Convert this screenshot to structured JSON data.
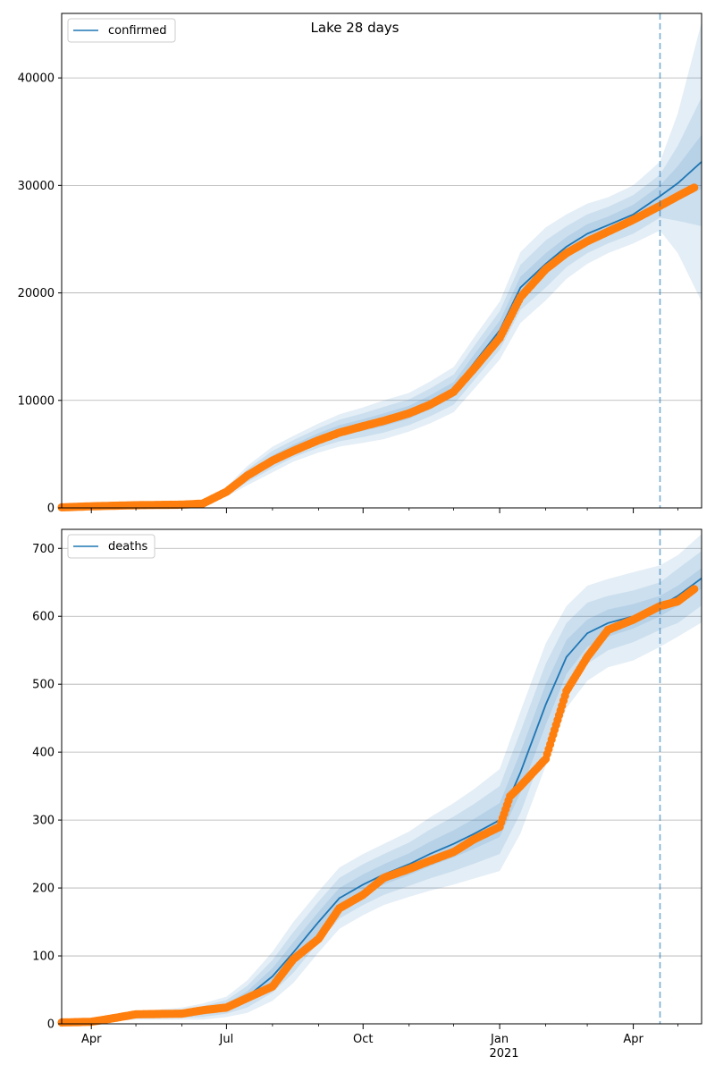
{
  "title": "Lake 28 days",
  "colors": {
    "model": "#1f77b4",
    "band": "#1f77b4",
    "observed": "#ff7f0e",
    "grid": "#b0b0b0",
    "cutoff": "#1f77b4"
  },
  "x_axis": {
    "start": "2020-03-12",
    "end": "2021-05-17",
    "ticks": [
      "Apr",
      "Jul",
      "Oct",
      "Jan",
      "Apr"
    ],
    "tick_dates": [
      "2020-04-01",
      "2020-07-01",
      "2020-10-01",
      "2021-01-01",
      "2021-04-01"
    ],
    "year_label": "2021",
    "cutoff_date": "2021-04-19"
  },
  "chart_data": [
    {
      "type": "line",
      "name": "confirmed",
      "legend": "confirmed",
      "legend_position": "top-left",
      "ylim": [
        0,
        46000
      ],
      "yticks": [
        0,
        10000,
        20000,
        30000,
        40000
      ],
      "grid": "horizontal",
      "model": {
        "x": [
          "2020-03-12",
          "2020-06-15",
          "2020-07-01",
          "2020-07-15",
          "2020-08-01",
          "2020-08-15",
          "2020-09-01",
          "2020-09-15",
          "2020-10-01",
          "2020-10-15",
          "2020-11-01",
          "2020-11-15",
          "2020-12-01",
          "2020-12-15",
          "2021-01-01",
          "2021-01-15",
          "2021-02-01",
          "2021-02-15",
          "2021-03-01",
          "2021-03-15",
          "2021-04-01",
          "2021-04-19",
          "2021-05-01",
          "2021-05-17"
        ],
        "y": [
          50,
          350,
          1500,
          3000,
          4500,
          5500,
          6500,
          7200,
          7700,
          8200,
          8900,
          9800,
          11000,
          13500,
          16500,
          20500,
          22700,
          24300,
          25500,
          26300,
          27300,
          29000,
          30200,
          32200
        ],
        "band_widths": [
          [
            0,
            50,
            150,
            300,
            400,
            400,
            450,
            500,
            550,
            600,
            600,
            650,
            700,
            800,
            900,
            1000,
            1000,
            900,
            900,
            800,
            900,
            1000,
            1600,
            2500
          ],
          [
            0,
            100,
            300,
            600,
            800,
            800,
            900,
            1000,
            1100,
            1200,
            1200,
            1300,
            1400,
            1600,
            1800,
            2100,
            2200,
            1900,
            1800,
            1700,
            1800,
            2000,
            3500,
            6000
          ],
          [
            0,
            150,
            450,
            900,
            1200,
            1200,
            1350,
            1500,
            1650,
            1800,
            1800,
            1950,
            2100,
            2400,
            2700,
            3300,
            3400,
            3000,
            2800,
            2600,
            2700,
            3200,
            6500,
            13000
          ]
        ]
      },
      "observed": {
        "dates": [
          "2020-03-12",
          "2020-04-01",
          "2020-05-01",
          "2020-06-01",
          "2020-06-15",
          "2020-07-01",
          "2020-07-15",
          "2020-08-01",
          "2020-08-15",
          "2020-09-01",
          "2020-09-15",
          "2020-10-01",
          "2020-10-15",
          "2020-11-01",
          "2020-11-15",
          "2020-12-01",
          "2020-12-15",
          "2021-01-01",
          "2021-01-15",
          "2021-02-01",
          "2021-02-15",
          "2021-03-01",
          "2021-03-15",
          "2021-04-01",
          "2021-04-19",
          "2021-05-01",
          "2021-05-12"
        ],
        "values": [
          50,
          150,
          250,
          300,
          400,
          1500,
          3000,
          4400,
          5300,
          6300,
          7000,
          7600,
          8100,
          8800,
          9600,
          10800,
          13000,
          15800,
          19600,
          22200,
          23700,
          24800,
          25700,
          26800,
          28100,
          29000,
          29800
        ]
      }
    },
    {
      "type": "line",
      "name": "deaths",
      "legend": "deaths",
      "legend_position": "top-left",
      "ylim": [
        0,
        728
      ],
      "yticks": [
        0,
        100,
        200,
        300,
        400,
        500,
        600,
        700
      ],
      "grid": "horizontal",
      "model": {
        "x": [
          "2020-03-12",
          "2020-04-01",
          "2020-05-01",
          "2020-06-01",
          "2020-06-15",
          "2020-07-01",
          "2020-07-15",
          "2020-08-01",
          "2020-08-15",
          "2020-09-01",
          "2020-09-15",
          "2020-10-01",
          "2020-10-15",
          "2020-11-01",
          "2020-11-15",
          "2020-12-01",
          "2020-12-15",
          "2021-01-01",
          "2021-01-15",
          "2021-02-01",
          "2021-02-15",
          "2021-03-01",
          "2021-03-15",
          "2021-04-01",
          "2021-04-19",
          "2021-05-01",
          "2021-05-17"
        ],
        "y": [
          2,
          4,
          12,
          15,
          18,
          25,
          40,
          70,
          105,
          150,
          185,
          205,
          220,
          235,
          250,
          265,
          280,
          300,
          370,
          470,
          540,
          575,
          590,
          600,
          615,
          630,
          656
        ],
        "band_widths": [
          [
            0,
            1,
            2,
            3,
            4,
            5,
            8,
            12,
            15,
            15,
            15,
            15,
            15,
            16,
            18,
            20,
            22,
            25,
            30,
            30,
            25,
            20,
            20,
            18,
            15,
            15,
            15
          ],
          [
            0,
            2,
            4,
            6,
            8,
            10,
            16,
            24,
            30,
            30,
            30,
            30,
            30,
            32,
            36,
            40,
            44,
            50,
            60,
            60,
            50,
            45,
            40,
            38,
            35,
            40,
            40
          ],
          [
            0,
            3,
            6,
            9,
            12,
            15,
            24,
            36,
            45,
            45,
            45,
            45,
            45,
            48,
            54,
            60,
            66,
            75,
            90,
            90,
            75,
            70,
            65,
            65,
            60,
            60,
            65
          ]
        ]
      },
      "observed": {
        "dates": [
          "2020-03-12",
          "2020-04-01",
          "2020-04-15",
          "2020-05-01",
          "2020-06-01",
          "2020-06-15",
          "2020-07-01",
          "2020-07-15",
          "2020-08-01",
          "2020-08-15",
          "2020-09-01",
          "2020-09-15",
          "2020-10-01",
          "2020-10-15",
          "2020-11-01",
          "2020-11-15",
          "2020-12-01",
          "2020-12-15",
          "2021-01-01",
          "2021-01-08",
          "2021-01-15",
          "2021-02-01",
          "2021-02-15",
          "2021-03-01",
          "2021-03-15",
          "2021-04-01",
          "2021-04-19",
          "2021-05-01",
          "2021-05-12"
        ],
        "values": [
          2,
          3,
          8,
          14,
          15,
          20,
          24,
          38,
          55,
          95,
          125,
          170,
          190,
          215,
          228,
          240,
          253,
          272,
          290,
          335,
          350,
          390,
          490,
          540,
          580,
          595,
          615,
          622,
          640
        ]
      }
    }
  ]
}
